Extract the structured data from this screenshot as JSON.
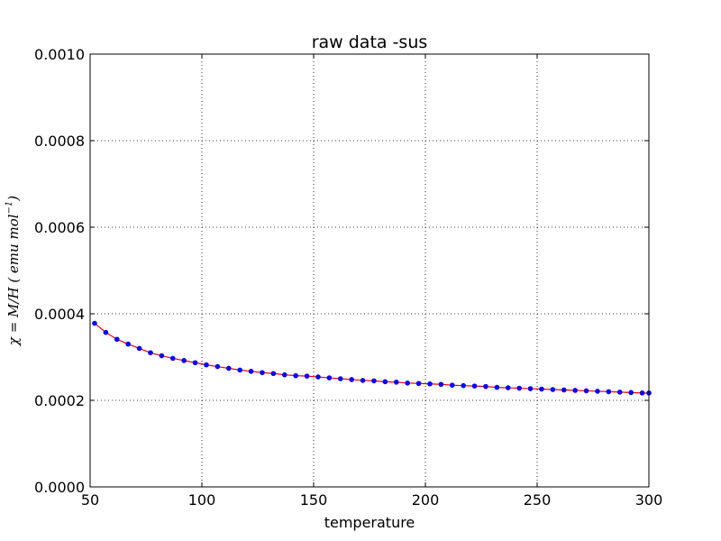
{
  "chart_data": {
    "type": "line",
    "title": "raw data -sus",
    "xlabel": "temperature",
    "ylabel_parts": {
      "main": "χ = M/H ( emu mol",
      "sup": "−1",
      "close": ")"
    },
    "xlim": [
      50,
      300
    ],
    "ylim": [
      0.0,
      0.001
    ],
    "xticks": [
      50,
      100,
      150,
      200,
      250,
      300
    ],
    "yticks": [
      0.0,
      0.0002,
      0.0004,
      0.0006,
      0.0008,
      0.001
    ],
    "xtick_labels": [
      "50",
      "100",
      "150",
      "200",
      "250",
      "300"
    ],
    "ytick_labels": [
      "0.0000",
      "0.0002",
      "0.0004",
      "0.0006",
      "0.0008",
      "0.0010"
    ],
    "grid": true,
    "series": [
      {
        "line_color": "#ff0000",
        "marker_color": "#0000ff",
        "x": [
          52,
          57,
          62,
          67,
          72,
          77,
          82,
          87,
          92,
          97,
          102,
          107,
          112,
          117,
          122,
          127,
          132,
          137,
          142,
          147,
          152,
          157,
          162,
          167,
          172,
          177,
          182,
          187,
          192,
          197,
          202,
          207,
          212,
          217,
          222,
          227,
          232,
          237,
          242,
          247,
          252,
          257,
          262,
          267,
          272,
          277,
          282,
          287,
          292,
          297,
          300
        ],
        "y": [
          0.000378,
          0.000357,
          0.000341,
          0.00033,
          0.00032,
          0.00031,
          0.000303,
          0.000297,
          0.000292,
          0.000287,
          0.000282,
          0.000278,
          0.000274,
          0.00027,
          0.000267,
          0.000264,
          0.000262,
          0.000259,
          0.000257,
          0.000256,
          0.000254,
          0.000252,
          0.00025,
          0.000248,
          0.000246,
          0.000245,
          0.000243,
          0.000242,
          0.00024,
          0.000239,
          0.000238,
          0.000237,
          0.000235,
          0.000234,
          0.000233,
          0.000232,
          0.00023,
          0.000229,
          0.000228,
          0.000227,
          0.000226,
          0.000225,
          0.000224,
          0.000223,
          0.000222,
          0.000221,
          0.00022,
          0.000219,
          0.000218,
          0.000217,
          0.000217
        ]
      }
    ]
  }
}
